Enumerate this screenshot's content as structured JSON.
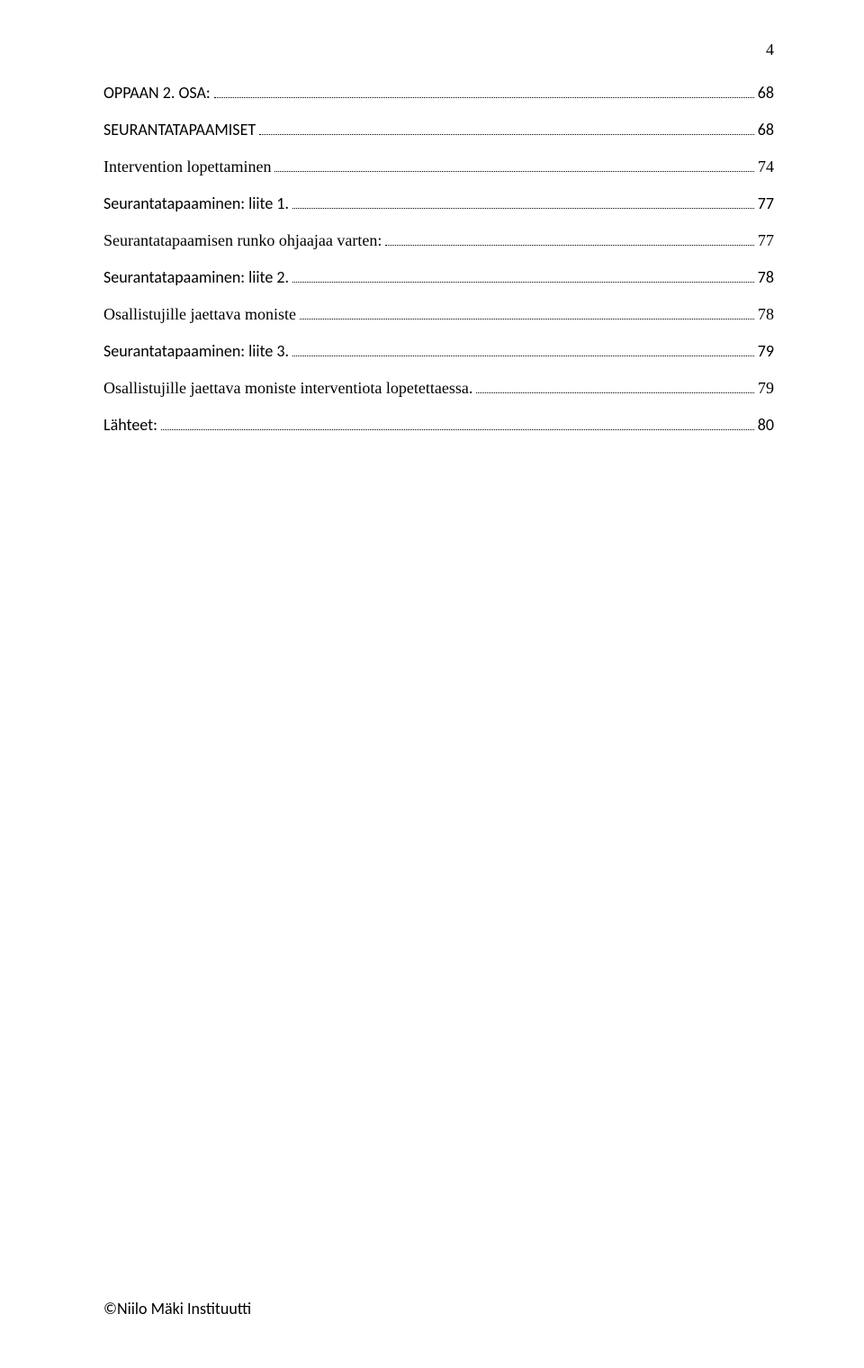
{
  "page_number_top": "4",
  "footer": "©Niilo Mäki Instituutti",
  "toc": {
    "entries": [
      {
        "label": "OPPAAN 2. OSA:",
        "page": "68",
        "sans": true
      },
      {
        "label": "SEURANTATAPAAMISET",
        "page": "68",
        "sans": true
      },
      {
        "label": "Intervention lopettaminen",
        "page": "74",
        "sans": false
      },
      {
        "label": "Seurantatapaaminen: liite 1.",
        "page": "77",
        "sans": true
      },
      {
        "label": "Seurantatapaamisen runko ohjaajaa varten:",
        "page": "77",
        "sans": false
      },
      {
        "label": "Seurantatapaaminen: liite 2.",
        "page": "78",
        "sans": true
      },
      {
        "label": "Osallistujille jaettava moniste",
        "page": "78",
        "sans": false
      },
      {
        "label": "Seurantatapaaminen: liite 3.",
        "page": "79",
        "sans": true
      },
      {
        "label": "Osallistujille jaettava moniste interventiota lopetettaessa. ",
        "page": "79",
        "sans": false
      },
      {
        "label": "Lähteet:",
        "page": "80",
        "sans": true
      }
    ]
  }
}
